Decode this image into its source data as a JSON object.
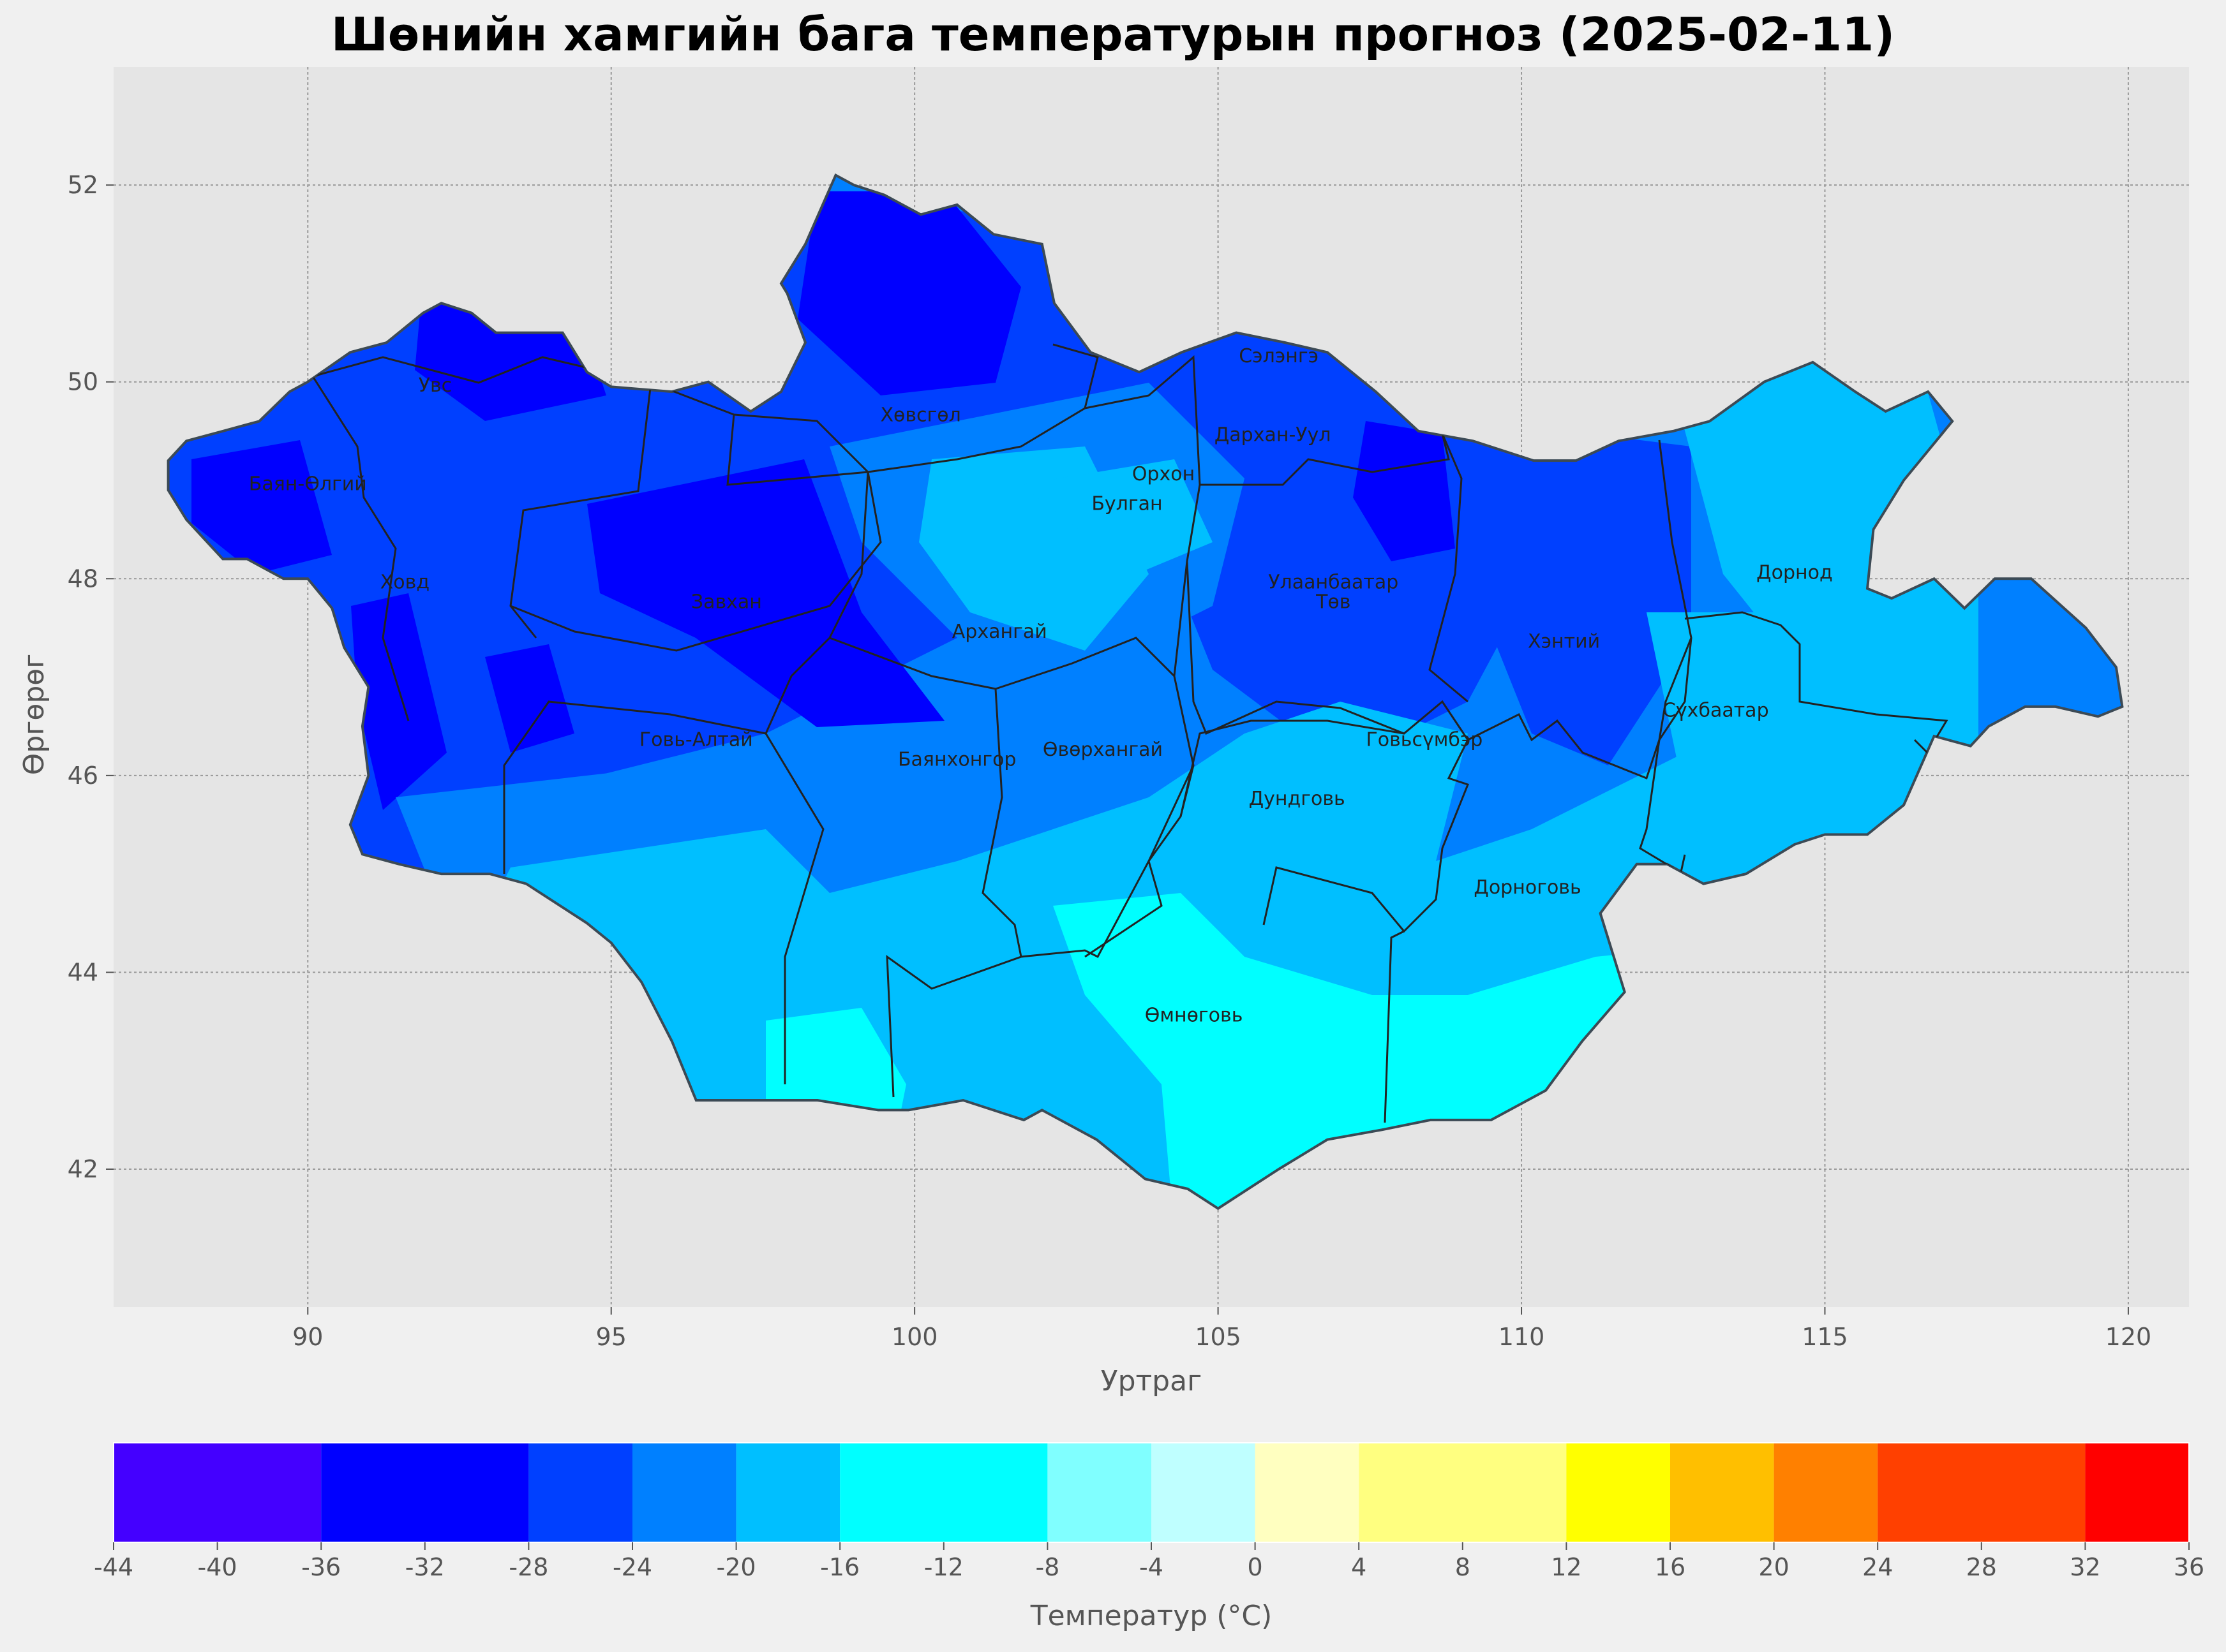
{
  "title": "Шөнийн хамгийн бага температурын прогноз (2025-02-11)",
  "map": {
    "xlabel": "Уртраг",
    "ylabel": "Өргөрөг",
    "x_ticks": [
      "90",
      "95",
      "100",
      "105",
      "110",
      "115",
      "120"
    ],
    "y_ticks": [
      "52",
      "50",
      "48",
      "46",
      "44",
      "42"
    ],
    "lon_range": [
      86.8,
      121.0
    ],
    "lat_range": [
      40.6,
      53.2
    ],
    "provinces": [
      {
        "name": "Увс",
        "lon": 92.1,
        "lat": 49.9
      },
      {
        "name": "Баян-Өлгий",
        "lon": 90.0,
        "lat": 48.9
      },
      {
        "name": "Ховд",
        "lon": 91.6,
        "lat": 47.9
      },
      {
        "name": "Завхан",
        "lon": 96.9,
        "lat": 47.7
      },
      {
        "name": "Хөвсгөл",
        "lon": 100.1,
        "lat": 49.6
      },
      {
        "name": "Архангай",
        "lon": 101.4,
        "lat": 47.4
      },
      {
        "name": "Говь-Алтай",
        "lon": 96.4,
        "lat": 46.3
      },
      {
        "name": "Баянхонгор",
        "lon": 100.7,
        "lat": 46.1
      },
      {
        "name": "Өвөрхангай",
        "lon": 103.1,
        "lat": 46.2
      },
      {
        "name": "Булган",
        "lon": 103.5,
        "lat": 48.7
      },
      {
        "name": "Орхон",
        "lon": 104.1,
        "lat": 49.0
      },
      {
        "name": "Сэлэнгэ",
        "lon": 106.0,
        "lat": 50.2
      },
      {
        "name": "Дархан-Уул",
        "lon": 105.9,
        "lat": 49.4
      },
      {
        "name": "Улаанбаатар",
        "lon": 106.9,
        "lat": 47.9
      },
      {
        "name": "Төв",
        "lon": 106.9,
        "lat": 47.7
      },
      {
        "name": "Говьсүмбэр",
        "lon": 108.4,
        "lat": 46.3
      },
      {
        "name": "Дундговь",
        "lon": 106.3,
        "lat": 45.7
      },
      {
        "name": "Хэнтий",
        "lon": 110.7,
        "lat": 47.3
      },
      {
        "name": "Дорнод",
        "lon": 114.5,
        "lat": 48.0
      },
      {
        "name": "Сүхбаатар",
        "lon": 113.2,
        "lat": 46.6
      },
      {
        "name": "Дорноговь",
        "lon": 110.1,
        "lat": 44.8
      },
      {
        "name": "Өмнөговь",
        "lon": 104.6,
        "lat": 43.5
      }
    ]
  },
  "colorbar": {
    "label": "Температур (°C)",
    "ticks": [
      "-44",
      "-40",
      "-36",
      "-32",
      "-28",
      "-24",
      "-20",
      "-16",
      "-12",
      "-8",
      "-4",
      "0",
      "4",
      "8",
      "12",
      "16",
      "20",
      "24",
      "28",
      "32",
      "36"
    ],
    "bins": [
      {
        "from": -44,
        "to": -36,
        "color": "#4400ff"
      },
      {
        "from": -36,
        "to": -28,
        "color": "#0000ff"
      },
      {
        "from": -28,
        "to": -24,
        "color": "#0040ff"
      },
      {
        "from": -24,
        "to": -20,
        "color": "#0080ff"
      },
      {
        "from": -20,
        "to": -16,
        "color": "#00bfff"
      },
      {
        "from": -16,
        "to": -8,
        "color": "#00ffff"
      },
      {
        "from": -8,
        "to": -4,
        "color": "#80ffff"
      },
      {
        "from": -4,
        "to": 0,
        "color": "#bfffff"
      },
      {
        "from": 0,
        "to": 4,
        "color": "#ffffc0"
      },
      {
        "from": 4,
        "to": 12,
        "color": "#ffff80"
      },
      {
        "from": 12,
        "to": 16,
        "color": "#ffff00"
      },
      {
        "from": 16,
        "to": 20,
        "color": "#ffbf00"
      },
      {
        "from": 20,
        "to": 24,
        "color": "#ff8000"
      },
      {
        "from": 24,
        "to": 32,
        "color": "#ff4000"
      },
      {
        "from": 32,
        "to": 36,
        "color": "#ff0000"
      }
    ]
  }
}
